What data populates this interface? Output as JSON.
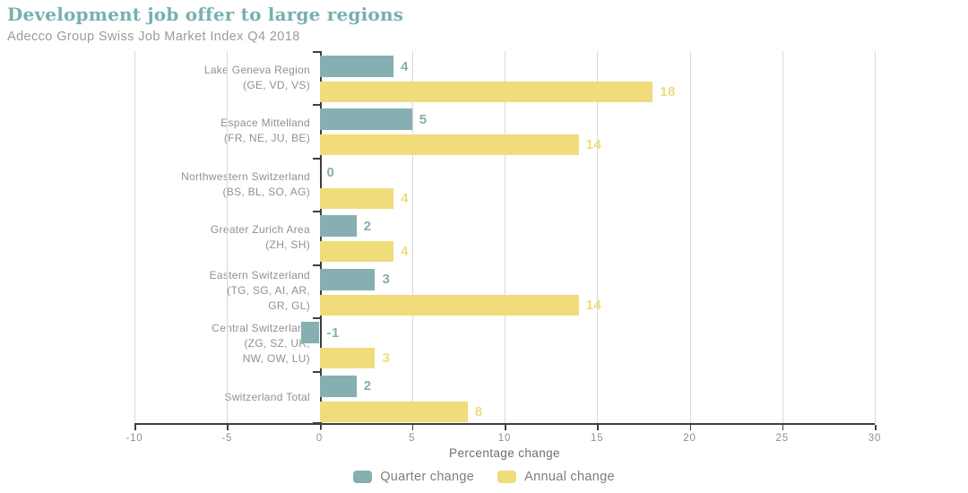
{
  "header": {
    "title": "Development job offer to large regions",
    "subtitle": "Adecco Group Swiss Job Market Index Q4 2018"
  },
  "chart_data": {
    "type": "bar",
    "orientation": "horizontal",
    "title": "Development job offer to large regions",
    "subtitle": "Adecco Group Swiss Job Market Index Q4 2018",
    "xlabel": "Percentage change",
    "xlim": [
      -10,
      30
    ],
    "xticks": [
      -10,
      -5,
      0,
      5,
      10,
      15,
      20,
      25,
      30
    ],
    "grid": "vertical-light-gridlines-every-5",
    "legend_position": "bottom-center",
    "categories": [
      [
        "Lake Geneva Region",
        "(GE, VD, VS)"
      ],
      [
        "Espace Mittelland",
        "(FR, NE, JU, BE)"
      ],
      [
        "Northwestern Switzerland",
        "(BS, BL, SO, AG)"
      ],
      [
        "Greater Zurich Area",
        "(ZH, SH)"
      ],
      [
        "Eastern Switzerland",
        "(TG, SG, AI, AR,",
        "GR, GL)"
      ],
      [
        "Central Switzerland",
        "(ZG, SZ, UR,",
        "NW, OW, LU)"
      ],
      [
        "Switzerland Total"
      ]
    ],
    "series": [
      {
        "name": "Quarter change",
        "color": "#85afb0",
        "values": [
          4,
          5,
          0,
          2,
          3,
          -1,
          2
        ]
      },
      {
        "name": "Annual change",
        "color": "#f0dc7a",
        "values": [
          18,
          14,
          4,
          4,
          14,
          3,
          8
        ]
      }
    ]
  },
  "colors": {
    "title": "#76b1ae",
    "subtitle": "#9b9b9b",
    "category_label": "#919191",
    "tick_label": "#8f8f8f",
    "axis_dark": "#3f3f3f",
    "gridline": "#d9d9d9",
    "quarter_change": "#85afb0",
    "annual_change": "#f0dc7a"
  }
}
